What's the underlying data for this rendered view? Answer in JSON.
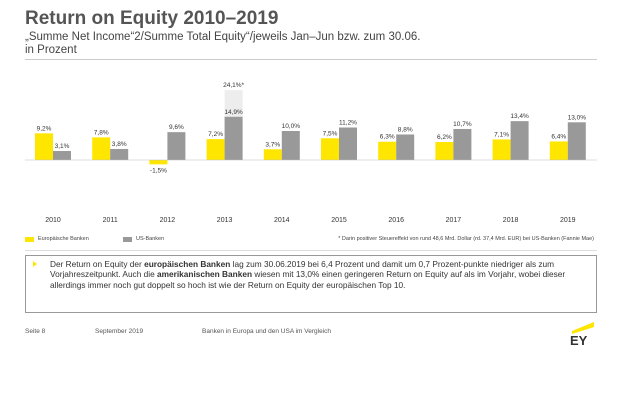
{
  "header": {
    "title": "Return on Equity 2010–2019",
    "subtitle_line1": "„Summe Net Income“2/Summe Total Equity“/jeweils Jan–Jun bzw. zum 30.06.",
    "subtitle_line2": "in Prozent"
  },
  "colors": {
    "eu": "#ffe600",
    "us": "#999999",
    "outlier": "#ededed"
  },
  "chart_data": {
    "type": "bar",
    "categories": [
      "2010",
      "2011",
      "2012",
      "2013",
      "2014",
      "2015",
      "2016",
      "2017",
      "2018",
      "2019"
    ],
    "series": [
      {
        "name": "Europäische Banken",
        "values": [
          9.2,
          7.8,
          -1.5,
          7.2,
          3.7,
          7.5,
          6.3,
          6.2,
          7.1,
          6.4
        ],
        "labels": [
          "9,2%",
          "7,8%",
          "-1,5%",
          "7,2%",
          "3,7%",
          "7,5%",
          "6,3%",
          "6,2%",
          "7,1%",
          "6,4%"
        ]
      },
      {
        "name": "US-Banken",
        "values": [
          3.1,
          3.8,
          9.6,
          14.9,
          10.0,
          11.2,
          8.8,
          10.7,
          13.4,
          13.0
        ],
        "labels": [
          "3,1%",
          "3,8%",
          "9,6%",
          "14,9%",
          "10,0%",
          "11,2%",
          "8,8%",
          "10,7%",
          "13,4%",
          "13,0%"
        ]
      }
    ],
    "annotations": [
      {
        "category": "2013",
        "series": "US-Banken",
        "value": 24.1,
        "label": "24,1%*"
      }
    ],
    "grid": false,
    "legend": "bottom-left"
  },
  "legend": {
    "eu_label": "Europäische Banken",
    "us_label": "US-Banken",
    "footnote": "* Darin positiver Steuereffekt von rund 48,6 Mrd. Dollar (rd. 37,4 Mrd. EUR) bei US-Banken (Fannie Mae)"
  },
  "commentary": {
    "p1": "Der Return on Equity der ",
    "b1": "europäischen Banken",
    "p2": " lag zum 30.06.2019 bei 6,4 Prozent und damit um 0,7 Prozent-punkte niedriger als zum Vorjahreszeitpunkt. Auch die ",
    "b2": "amerikanischen Banken",
    "p3": " wiesen mit 13,0% einen geringeren Return on Equity auf als im Vorjahr, wobei dieser allerdings immer noch gut doppelt so hoch ist wie der Return on Equity der europäischen Top 10."
  },
  "footer": {
    "page": "Seite 8",
    "date": "September 2019",
    "doc_title": "Banken in Europa und den USA im Vergleich",
    "logo_text": "EY"
  }
}
